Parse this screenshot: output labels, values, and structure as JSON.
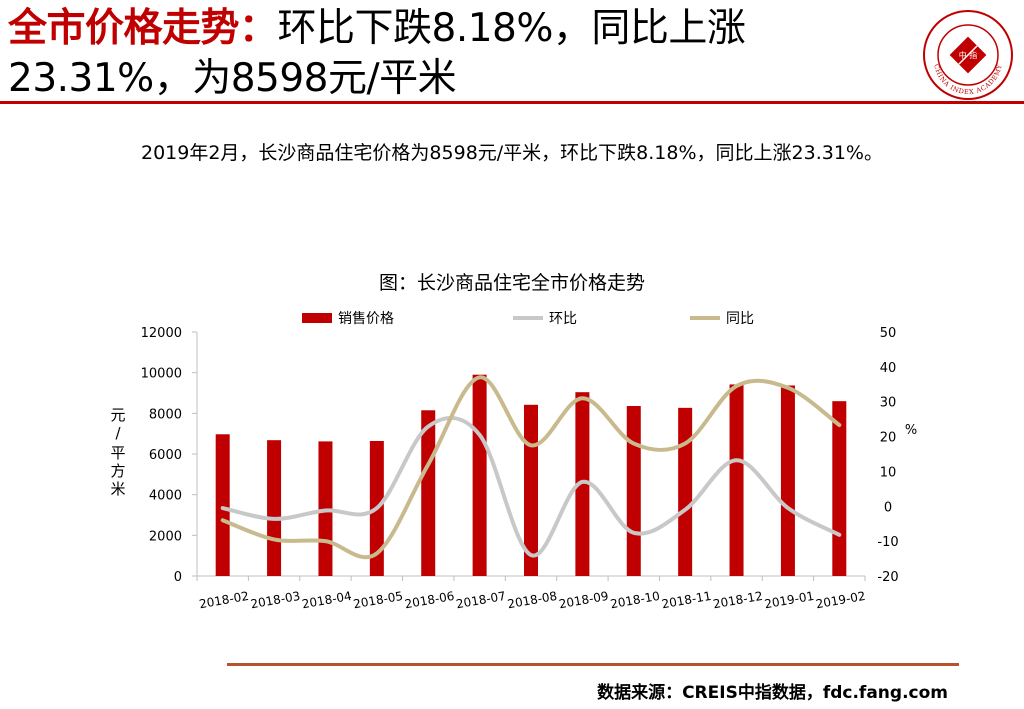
{
  "header": {
    "title_highlight": "全市价格走势：",
    "title_rest": "环比下跌8.18%，同比上涨23.31%，为8598元/平米"
  },
  "logo": {
    "name": "CHINA INDEX ACADEMY",
    "center_text": "中 指"
  },
  "summary": "2019年2月，长沙商品住宅价格为8598元/平米，环比下跌8.18%，同比上涨23.31%。",
  "chart_data": {
    "type": "bar",
    "title": "图：长沙商品住宅全市价格走势",
    "categories": [
      "2018-02",
      "2018-03",
      "2018-04",
      "2018-05",
      "2018-06",
      "2018-07",
      "2018-08",
      "2018-09",
      "2018-10",
      "2018-11",
      "2018-12",
      "2019-01",
      "2019-02"
    ],
    "series": [
      {
        "name": "销售价格",
        "kind": "bar",
        "axis": "left",
        "color": "#c00000",
        "values": [
          6970,
          6680,
          6620,
          6640,
          8150,
          9900,
          8420,
          9040,
          8360,
          8270,
          9420,
          9370,
          8598
        ]
      },
      {
        "name": "环比",
        "kind": "line",
        "axis": "right",
        "color": "#c8c8c8",
        "values": [
          -0.5,
          -3.6,
          -1.2,
          -0.5,
          22.9,
          20.5,
          -14.0,
          7.0,
          -7.6,
          -1.0,
          13.2,
          -0.5,
          -8.18
        ]
      },
      {
        "name": "同比",
        "kind": "line",
        "axis": "right",
        "color": "#c9ba8e",
        "values": [
          -4.0,
          -9.5,
          -10.0,
          -13.5,
          12.0,
          37.0,
          17.5,
          31.0,
          18.0,
          18.0,
          34.5,
          34.0,
          23.31
        ]
      }
    ],
    "left_axis": {
      "label": "元/平方米",
      "min": 0,
      "max": 12000,
      "ticks": [
        0,
        2000,
        4000,
        6000,
        8000,
        10000,
        12000
      ]
    },
    "right_axis": {
      "label": "%",
      "min": -20,
      "max": 50,
      "ticks": [
        -20,
        -10,
        0,
        10,
        20,
        30,
        40,
        50
      ]
    },
    "grid": false,
    "legend_position": "top"
  },
  "footer": {
    "source": "数据来源：CREIS中指数据，fdc.fang.com"
  }
}
